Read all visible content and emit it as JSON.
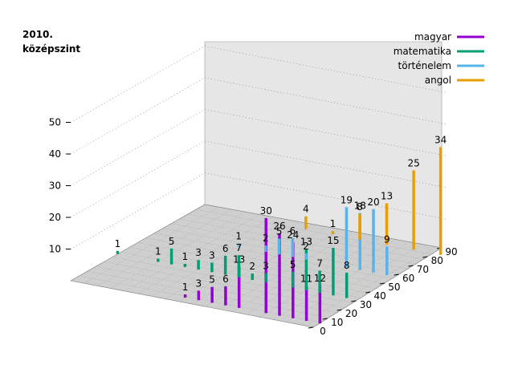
{
  "chart_data": {
    "type": "bar",
    "title_lines": [
      "2010.",
      "középszint"
    ],
    "xlabel": "",
    "ylabel": "",
    "x_ticks": [
      "0",
      "10",
      "20",
      "30",
      "40",
      "50",
      "60",
      "70",
      "80",
      "90"
    ],
    "z_ticks": [
      "10",
      "20",
      "30",
      "40",
      "50"
    ],
    "xlim": [
      0,
      90
    ],
    "zlim": [
      0,
      50
    ],
    "grid": true,
    "legend_position": "top-right",
    "series": [
      {
        "name": "magyar",
        "color": "#9400d3",
        "points": [
          {
            "x": 40,
            "y": 1,
            "label": "1"
          },
          {
            "x": 45,
            "y": 3,
            "label": "3"
          },
          {
            "x": 50,
            "y": 5,
            "label": "5"
          },
          {
            "x": 55,
            "y": 6,
            "label": "6"
          },
          {
            "x": 60,
            "y": 13,
            "label": "13"
          },
          {
            "x": 70,
            "y": 30,
            "label": "30"
          },
          {
            "x": 75,
            "y": 26,
            "label": "26"
          },
          {
            "x": 80,
            "y": 24,
            "label": "24"
          },
          {
            "x": 85,
            "y": 11,
            "label": "11"
          },
          {
            "x": 90,
            "y": 12,
            "label": "12"
          }
        ]
      },
      {
        "name": "matematika",
        "color": "#009e73",
        "points": [
          {
            "x": 0,
            "y": 1,
            "label": "1"
          },
          {
            "x": 15,
            "y": 1,
            "label": "1"
          },
          {
            "x": 20,
            "y": 5,
            "label": "5"
          },
          {
            "x": 25,
            "y": 1,
            "label": "1"
          },
          {
            "x": 30,
            "y": 3,
            "label": "3"
          },
          {
            "x": 35,
            "y": 3,
            "label": "3"
          },
          {
            "x": 40,
            "y": 6,
            "label": "6"
          },
          {
            "x": 45,
            "y": 7,
            "label": "7"
          },
          {
            "x": 50,
            "y": 2,
            "label": "2"
          },
          {
            "x": 55,
            "y": 3,
            "label": "3"
          },
          {
            "x": 65,
            "y": 5,
            "label": "5"
          },
          {
            "x": 70,
            "y": 13,
            "label": "13"
          },
          {
            "x": 75,
            "y": 7,
            "label": "7"
          },
          {
            "x": 80,
            "y": 15,
            "label": "15"
          },
          {
            "x": 85,
            "y": 8,
            "label": "8"
          }
        ]
      },
      {
        "name": "történelem",
        "color": "#56b4e9",
        "points": [
          {
            "x": 30,
            "y": 1,
            "label": "1"
          },
          {
            "x": 40,
            "y": 2,
            "label": "2"
          },
          {
            "x": 45,
            "y": 5,
            "label": "5"
          },
          {
            "x": 50,
            "y": 6,
            "label": "6"
          },
          {
            "x": 55,
            "y": 2,
            "label": "2"
          },
          {
            "x": 70,
            "y": 19,
            "label": "19"
          },
          {
            "x": 75,
            "y": 18,
            "label": "18"
          },
          {
            "x": 80,
            "y": 20,
            "label": "20"
          },
          {
            "x": 85,
            "y": 9,
            "label": "9"
          }
        ]
      },
      {
        "name": "angol",
        "color": "#e69f00",
        "points": [
          {
            "x": 40,
            "y": 4,
            "label": "4"
          },
          {
            "x": 50,
            "y": 1,
            "label": "1"
          },
          {
            "x": 60,
            "y": 8,
            "label": "8"
          },
          {
            "x": 70,
            "y": 13,
            "label": "13"
          },
          {
            "x": 80,
            "y": 25,
            "label": "25"
          },
          {
            "x": 90,
            "y": 34,
            "label": "34"
          }
        ]
      }
    ]
  }
}
